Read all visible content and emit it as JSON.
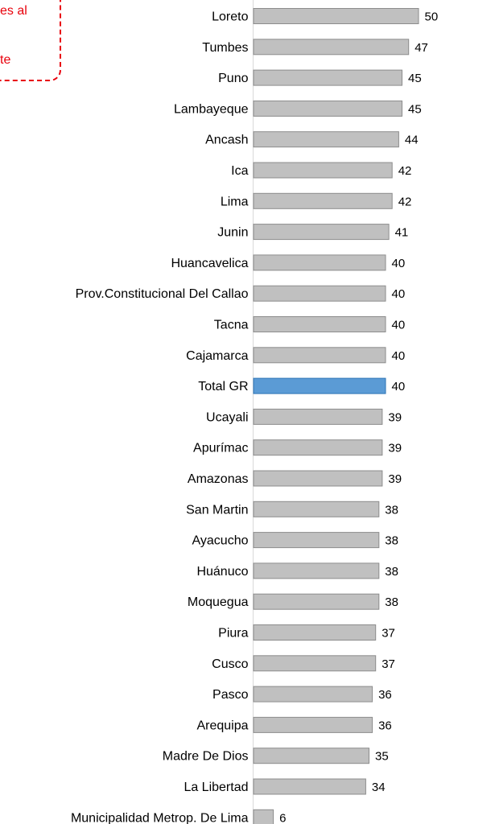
{
  "callout": {
    "lines": [
      "es al",
      "te"
    ],
    "color": "#e8000b"
  },
  "colors": {
    "bar": "#c0c0c0",
    "bar_stroke": "#8c8c8c",
    "highlight": "#5b9bd5",
    "highlight_stroke": "#2e75b6",
    "axis": "#d9d9d9"
  },
  "chart_data": {
    "type": "bar",
    "orientation": "horizontal",
    "categories": [
      "Loreto",
      "Tumbes",
      "Puno",
      "Lambayeque",
      "Ancash",
      "Ica",
      "Lima",
      "Junin",
      "Huancavelica",
      "Prov.Constitucional Del Callao",
      "Tacna",
      "Cajamarca",
      "Total GR",
      "Ucayali",
      "Apurímac",
      "Amazonas",
      "San Martin",
      "Ayacucho",
      "Huánuco",
      "Moquegua",
      "Piura",
      "Cusco",
      "Pasco",
      "Arequipa",
      "Madre De Dios",
      "La Libertad",
      "Municipalidad Metrop. De Lima"
    ],
    "values": [
      50,
      47,
      45,
      45,
      44,
      42,
      42,
      41,
      40,
      40,
      40,
      40,
      40,
      39,
      39,
      39,
      38,
      38,
      38,
      38,
      37,
      37,
      36,
      36,
      35,
      34,
      6
    ],
    "highlight": "Total GR",
    "xlim": [
      0,
      50
    ],
    "grid": false,
    "data_labels": true
  }
}
